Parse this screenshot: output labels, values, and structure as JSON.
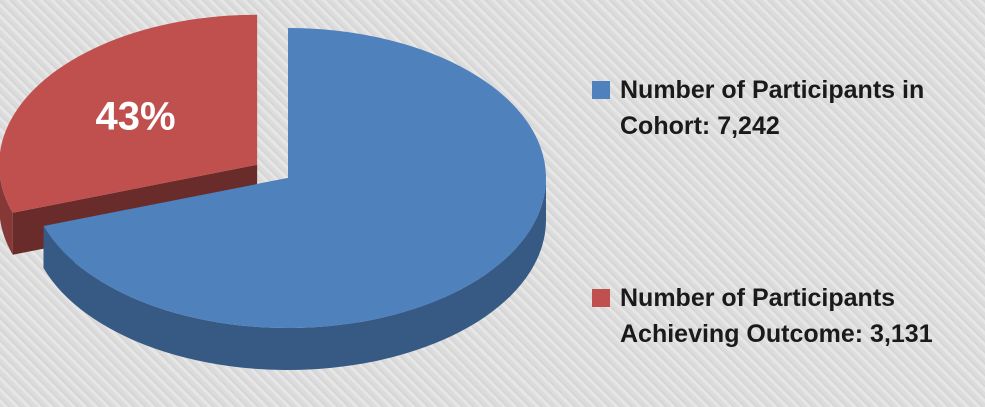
{
  "chart_data": {
    "type": "pie",
    "categories": [
      "Number of Participants in Cohort: 7,242",
      "Number of Participants Achieving Outcome: 3,131"
    ],
    "values": [
      7242,
      3131
    ],
    "colors": [
      "#4f81bd",
      "#c0504d"
    ],
    "exploded": [
      false,
      true
    ],
    "annotation": "43%"
  }
}
